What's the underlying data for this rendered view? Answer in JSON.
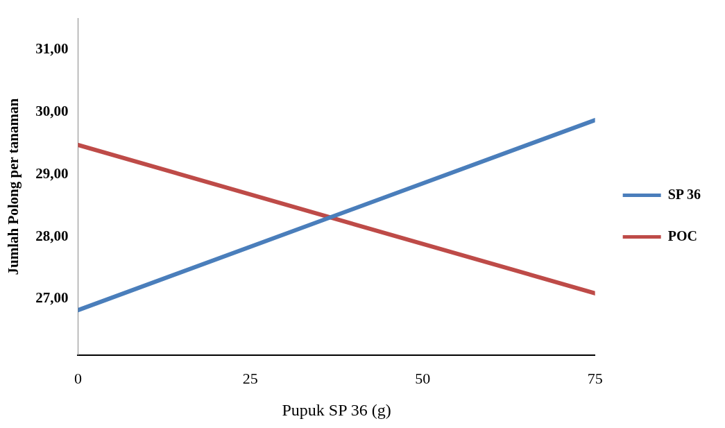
{
  "chart_data": {
    "type": "line",
    "xlabel": "Pupuk SP 36 (g)",
    "ylabel": "Jumlah Polong per tanaman",
    "x": [
      0,
      75
    ],
    "series": [
      {
        "name": "SP 36",
        "color": "#4a7ebb",
        "values": [
          26.82,
          29.87
        ]
      },
      {
        "name": "POC",
        "color": "#be4b48",
        "values": [
          29.47,
          27.09
        ]
      }
    ],
    "xlim": [
      0,
      75
    ],
    "xticks": [
      0,
      25,
      50,
      75
    ],
    "ylim": [
      26.1,
      31.5
    ],
    "yticks": [
      {
        "value": 27,
        "label": "27,00"
      },
      {
        "value": 28,
        "label": "28,00"
      },
      {
        "value": 29,
        "label": "29,00"
      },
      {
        "value": 30,
        "label": "30,00"
      },
      {
        "value": 31,
        "label": "31,00"
      }
    ],
    "grid": false,
    "legend": "right",
    "marker": "none",
    "line_style": "solid"
  }
}
